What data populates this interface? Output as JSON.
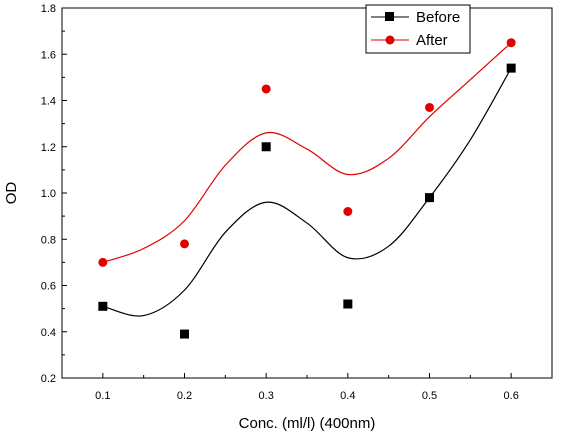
{
  "chart_data": {
    "type": "scatter",
    "title": "",
    "xlabel": "Conc. (ml/l)  (400nm)",
    "ylabel": "OD",
    "xlim": [
      0.05,
      0.65
    ],
    "ylim": [
      0.2,
      1.8
    ],
    "x_ticks": [
      "0.1",
      "0.2",
      "0.3",
      "0.4",
      "0.5",
      "0.6"
    ],
    "y_ticks": [
      "0.2",
      "0.4",
      "0.6",
      "0.8",
      "1.0",
      "1.2",
      "1.4",
      "1.6",
      "1.8"
    ],
    "legend_position": "top-right",
    "x": [
      0.1,
      0.2,
      0.3,
      0.4,
      0.5,
      0.6
    ],
    "series": [
      {
        "name": "Before",
        "marker": "square",
        "color": "#000000",
        "values": [
          0.51,
          0.39,
          1.2,
          0.52,
          0.98,
          1.54
        ],
        "fit_curve": [
          [
            0.1,
            0.51
          ],
          [
            0.15,
            0.47
          ],
          [
            0.2,
            0.58
          ],
          [
            0.25,
            0.83
          ],
          [
            0.3,
            0.96
          ],
          [
            0.35,
            0.87
          ],
          [
            0.4,
            0.72
          ],
          [
            0.45,
            0.77
          ],
          [
            0.5,
            0.98
          ],
          [
            0.55,
            1.23
          ],
          [
            0.6,
            1.54
          ]
        ]
      },
      {
        "name": "After",
        "marker": "circle",
        "color": "#e00000",
        "values": [
          0.7,
          0.78,
          1.45,
          0.92,
          1.37,
          1.65
        ],
        "fit_curve": [
          [
            0.1,
            0.7
          ],
          [
            0.15,
            0.76
          ],
          [
            0.2,
            0.88
          ],
          [
            0.25,
            1.12
          ],
          [
            0.3,
            1.26
          ],
          [
            0.35,
            1.19
          ],
          [
            0.4,
            1.08
          ],
          [
            0.45,
            1.15
          ],
          [
            0.5,
            1.33
          ],
          [
            0.55,
            1.49
          ],
          [
            0.6,
            1.65
          ]
        ]
      }
    ]
  }
}
